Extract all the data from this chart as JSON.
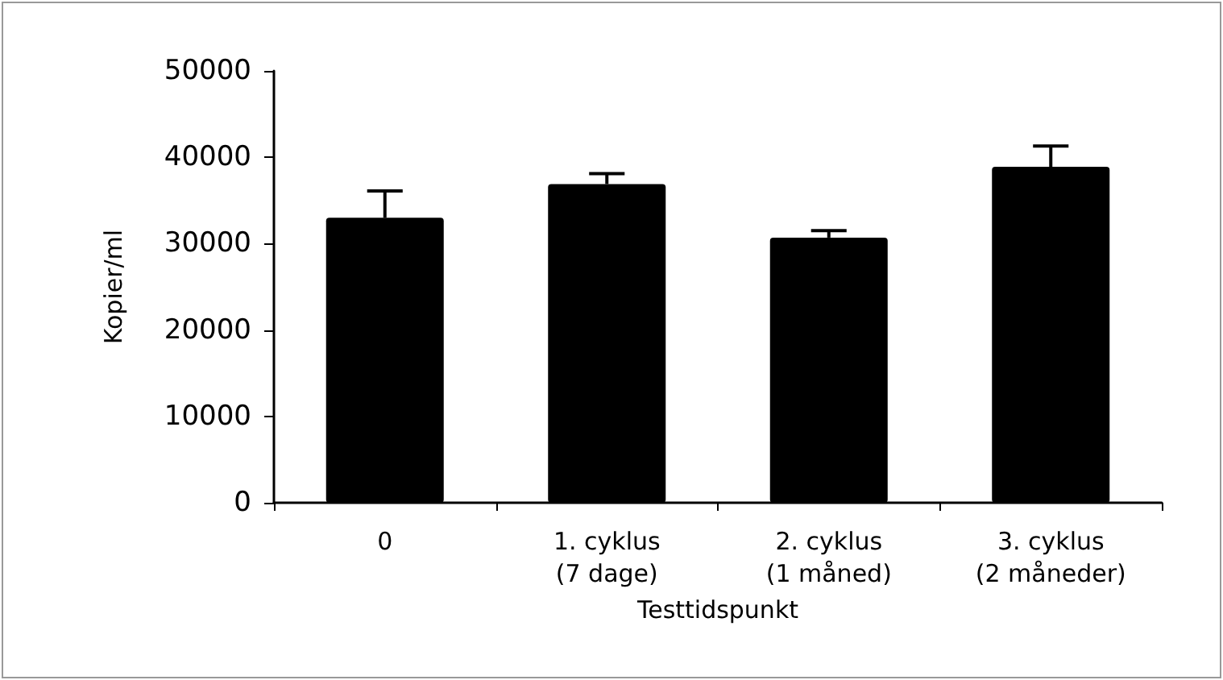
{
  "chart_data": {
    "type": "bar",
    "xlabel": "Testtidspunkt",
    "ylabel": "Kopier/ml",
    "categories": [
      "0",
      "1. cyklus\n(7 dage)",
      "2. cyklus\n(1 måned)",
      "3. cyklus\n(2 måneder)"
    ],
    "values": [
      33000,
      36900,
      30700,
      38900
    ],
    "errors": [
      [
        33000,
        36100
      ],
      [
        36900,
        38100
      ],
      [
        30700,
        31500
      ],
      [
        38900,
        41300
      ]
    ],
    "color": "#000000",
    "ylim": [
      0,
      50000
    ],
    "yticks": [
      0,
      10000,
      20000,
      30000,
      40000,
      50000
    ],
    "grid": false
  }
}
